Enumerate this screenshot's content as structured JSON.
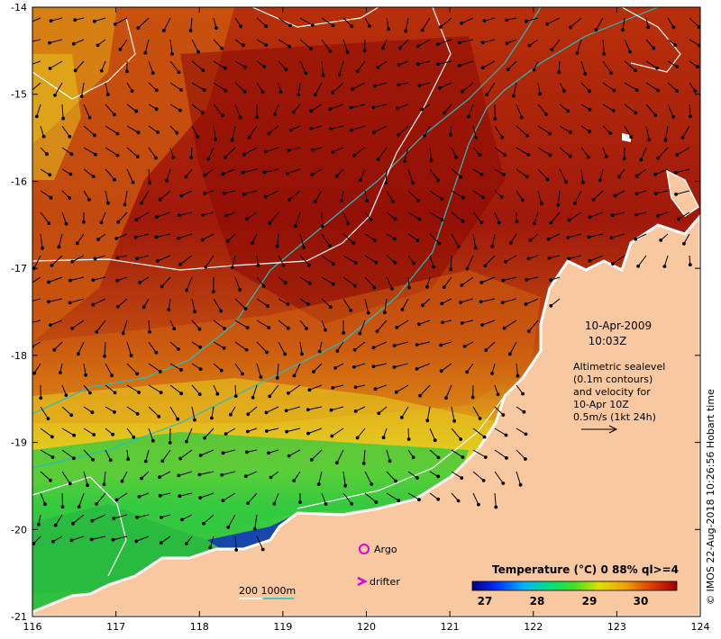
{
  "map": {
    "date": "10-Apr-2009",
    "time": "10:03Z",
    "altimetry_note": [
      "Altimetric sealevel",
      "(0.1m contours)",
      "and velocity for",
      "10-Apr 10Z",
      "0.5m/s (1kt 24h)"
    ],
    "argo_label": "Argo",
    "drifter_label": "drifter",
    "bathy_label": "200  1000m",
    "credit": "© IMOS 22-Aug-2018 10:26:56 Hobart time",
    "legend": {
      "title": "Temperature (°C) 0 88% ql>=4",
      "ticks": [
        "27",
        "28",
        "29",
        "30"
      ]
    },
    "x_ticks": [
      "116",
      "117",
      "118",
      "119",
      "120",
      "121",
      "122",
      "123",
      "124"
    ],
    "y_ticks": [
      "-14",
      "-15",
      "-16",
      "-17",
      "-18",
      "-19",
      "-20",
      "-21"
    ],
    "colors": {
      "sst_hot": "#9a0e06",
      "sst_warm": "#c8440c",
      "sst_mid": "#e08a12",
      "sst_yellow": "#e8e020",
      "sst_green": "#30d030",
      "sst_blue": "#1030c0",
      "land": "#f8c8a0",
      "argo": "#e000e0",
      "bathy_200": "#ffffff",
      "bathy_1000": "#20c0c0"
    }
  }
}
